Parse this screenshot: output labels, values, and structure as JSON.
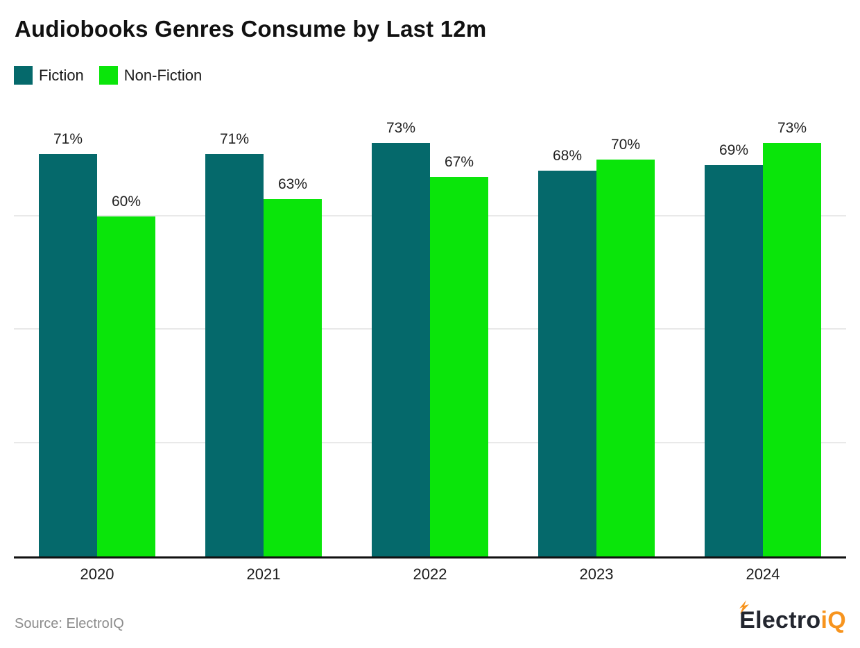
{
  "title": "Audiobooks Genres Consume by Last 12m",
  "legend": {
    "items": [
      {
        "label": "Fiction",
        "color": "#05696b"
      },
      {
        "label": "Non-Fiction",
        "color": "#0ae50a"
      }
    ]
  },
  "chart_data": {
    "type": "bar",
    "title": "Audiobooks Genres Consume by Last 12m",
    "categories": [
      "2020",
      "2021",
      "2022",
      "2023",
      "2024"
    ],
    "series": [
      {
        "name": "Fiction",
        "color": "#05696b",
        "values": [
          71,
          71,
          73,
          68,
          69
        ]
      },
      {
        "name": "Non-Fiction",
        "color": "#0ae50a",
        "values": [
          60,
          63,
          67,
          70,
          73
        ]
      }
    ],
    "value_suffix": "%",
    "xlabel": "",
    "ylabel": "",
    "ylim": [
      0,
      78
    ],
    "gridlines_pct": [
      20,
      40,
      60
    ],
    "grid": "horizontal",
    "y_tick_labels_shown": false,
    "legend_position": "top-left",
    "data_labels": "above-bars"
  },
  "footer": {
    "source": "Source: ElectroIQ",
    "logo_part1": "Electro",
    "logo_part2": "iQ",
    "logo_dark_color": "#23262f",
    "logo_accent_color": "#f7941e"
  },
  "colors": {
    "background": "#ffffff",
    "gridline": "#e9e9e9",
    "axis": "#111111",
    "title_text": "#111111",
    "value_label_text": "#1f1f1f",
    "axis_label_text": "#1a1a1a",
    "source_text": "#8c8c8c"
  }
}
